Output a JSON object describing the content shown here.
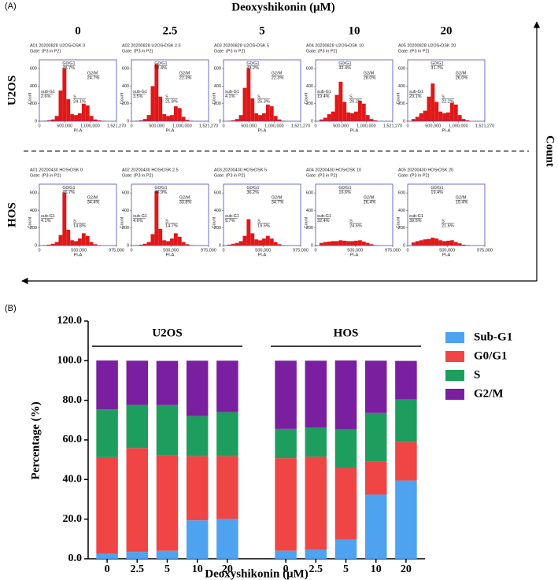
{
  "panel_a": {
    "type": "histogram",
    "panel_label": "(A)",
    "header": "Deoxyshikonin (μM)",
    "columns": [
      "0",
      "2.5",
      "5",
      "10",
      "20"
    ],
    "side_label": "Count",
    "x_label": "PI-A",
    "y_label": "Count",
    "gate_names": [
      "sub-G1",
      "G0/G1",
      "S",
      "G2/M"
    ],
    "rows": [
      {
        "label": "U2OS",
        "xlim": [
          0,
          1521270
        ],
        "xticks": [
          0,
          {
            "value": 500000,
            "label": "500,000"
          },
          {
            "value": 1000000,
            "label": "1,000,000"
          },
          {
            "value": 1521270,
            "label": "1,521,270"
          }
        ],
        "ylim": [
          0,
          700
        ],
        "yticks": [
          0,
          200,
          400,
          600
        ],
        "plots": [
          {
            "title": "A01 20200828 U2OS•DSK 0",
            "gate": "Gate: (P3 in P2)",
            "gate_values": [
              "2.6%",
              "48.7%",
              "24.1%",
              "24.7%"
            ],
            "counts": [
              0,
              5,
              10,
              20,
              60,
              350,
              600,
              250,
              80,
              70,
              90,
              200,
              180,
              60,
              20,
              10,
              5,
              0,
              0,
              0
            ]
          },
          {
            "title": "A02 20200828 U2OS•DSK 2.5",
            "gate": "Gate: (P3 in P2)",
            "gate_values": [
              "3.5%",
              "52.4%",
              "21.8%",
              "22.3%"
            ],
            "counts": [
              0,
              5,
              10,
              25,
              70,
              400,
              650,
              280,
              80,
              60,
              70,
              170,
              150,
              50,
              15,
              5,
              0,
              0,
              0,
              0
            ]
          },
          {
            "title": "A03 20200828 U2OS•DSK 5",
            "gate": "Gate: (P3 in P2)",
            "gate_values": [
              "4.1%",
              "48.2%",
              "25.3%",
              "22.3%"
            ],
            "counts": [
              0,
              5,
              10,
              25,
              70,
              380,
              600,
              260,
              90,
              70,
              90,
              190,
              170,
              60,
              20,
              5,
              0,
              0,
              0,
              0
            ]
          },
          {
            "title": "A04 20200828 U2OS•DSK 10",
            "gate": "Gate: (P3 in P2)",
            "gate_values": [
              "19.4%",
              "32.4%",
              "20.2%",
              "28.0%"
            ],
            "counts": [
              0,
              20,
              40,
              80,
              110,
              300,
              450,
              220,
              100,
              90,
              110,
              230,
              200,
              70,
              25,
              10,
              0,
              0,
              0,
              0
            ]
          },
          {
            "title": "A05 20200828 U2OS•DSK 20",
            "gate": "Gate: (P3 in P2)",
            "gate_values": [
              "20.1%",
              "31.7%",
              "22.2%",
              "26.0%"
            ],
            "counts": [
              0,
              25,
              50,
              90,
              120,
              280,
              430,
              220,
              110,
              90,
              100,
              210,
              190,
              70,
              25,
              10,
              0,
              0,
              0,
              0
            ]
          }
        ]
      },
      {
        "label": "HOS",
        "xlim": [
          0,
          975000
        ],
        "xticks": [
          0,
          {
            "value": 500000,
            "label": "500,000"
          },
          {
            "value": 975000,
            "label": "975,000"
          }
        ],
        "ylim": [
          0,
          700
        ],
        "yticks": [
          0,
          200,
          400,
          600
        ],
        "plots": [
          {
            "title": "A01 20200430 HOS•DSK 0",
            "gate": "Gate: (P3 in P2)",
            "gate_values": [
              "4.1%",
              "46.7%",
              "14.8%",
              "34.4%"
            ],
            "counts": [
              0,
              5,
              10,
              20,
              40,
              120,
              600,
              180,
              60,
              50,
              80,
              140,
              110,
              40,
              15,
              5,
              0,
              0,
              0,
              0
            ]
          },
          {
            "title": "A02 20200430 HOS•DSK 2.5",
            "gate": "Gate: (P3 in P2)",
            "gate_values": [
              "4.6%",
              "46.9%",
              "14.7%",
              "33.8%"
            ],
            "counts": [
              0,
              5,
              10,
              20,
              40,
              130,
              620,
              190,
              60,
              50,
              80,
              140,
              100,
              40,
              15,
              5,
              0,
              0,
              0,
              0
            ]
          },
          {
            "title": "A03 20200430 HOS•DSK 5",
            "gate": "Gate: (P3 in P2)",
            "gate_values": [
              "9.7%",
              "36.2%",
              "19.5%",
              "34.7%"
            ],
            "counts": [
              0,
              10,
              20,
              30,
              50,
              110,
              300,
              140,
              70,
              60,
              80,
              110,
              80,
              40,
              15,
              5,
              0,
              0,
              0,
              0
            ]
          },
          {
            "title": "A04 20200430 HOS•DSK 10",
            "gate": "Gate: (P3 in P2)",
            "gate_values": [
              "32.4%",
              "16.6%",
              "24.6%",
              "26.4%"
            ],
            "counts": [
              0,
              30,
              40,
              45,
              50,
              50,
              60,
              55,
              50,
              50,
              55,
              60,
              45,
              30,
              15,
              5,
              0,
              0,
              0,
              0
            ]
          },
          {
            "title": "A05 20200430 HOS•DSK 20",
            "gate": "Gate: (P3 in P2)",
            "gate_values": [
              "39.5%",
              "19.4%",
              "21.6%",
              "19.4%"
            ],
            "counts": [
              0,
              35,
              50,
              60,
              70,
              75,
              90,
              80,
              60,
              50,
              55,
              60,
              40,
              25,
              10,
              5,
              0,
              0,
              0,
              0
            ]
          }
        ]
      }
    ]
  },
  "chart_data": {
    "type": "stacked_bar",
    "panel_label": "(B)",
    "x_label": "Deoxyshikonin (μM)",
    "y_label": "Percentage (%)",
    "groups": [
      "U2OS",
      "HOS"
    ],
    "categories": [
      "0",
      "2.5",
      "5",
      "10",
      "20",
      "0",
      "2.5",
      "5",
      "10",
      "20"
    ],
    "ylim": [
      0,
      120
    ],
    "yticks": [
      {
        "value": 0,
        "label": "0.0"
      },
      {
        "value": 20,
        "label": "20.0"
      },
      {
        "value": 40,
        "label": "40.0"
      },
      {
        "value": 60,
        "label": "60.0"
      },
      {
        "value": 80,
        "label": "80.0"
      },
      {
        "value": 100,
        "label": "100.0"
      },
      {
        "value": 120,
        "label": "120.0"
      }
    ],
    "series": [
      {
        "name": "Sub-G1",
        "color": "#4da3f0",
        "values": [
          2.6,
          3.5,
          4.1,
          19.4,
          20.1,
          4.1,
          4.6,
          9.7,
          32.4,
          39.5
        ]
      },
      {
        "name": "G0/G1",
        "color": "#f04545",
        "values": [
          48.7,
          52.4,
          48.2,
          32.4,
          31.7,
          46.7,
          46.9,
          36.2,
          16.6,
          19.4
        ]
      },
      {
        "name": "S",
        "color": "#1e9e5e",
        "values": [
          24.1,
          21.8,
          25.3,
          20.2,
          22.2,
          14.8,
          14.7,
          19.5,
          24.6,
          21.6
        ]
      },
      {
        "name": "G2/M",
        "color": "#7a1fa0",
        "values": [
          24.7,
          22.3,
          22.3,
          28.0,
          26.0,
          34.4,
          33.8,
          34.7,
          26.4,
          19.4
        ]
      }
    ],
    "legend": "right"
  }
}
